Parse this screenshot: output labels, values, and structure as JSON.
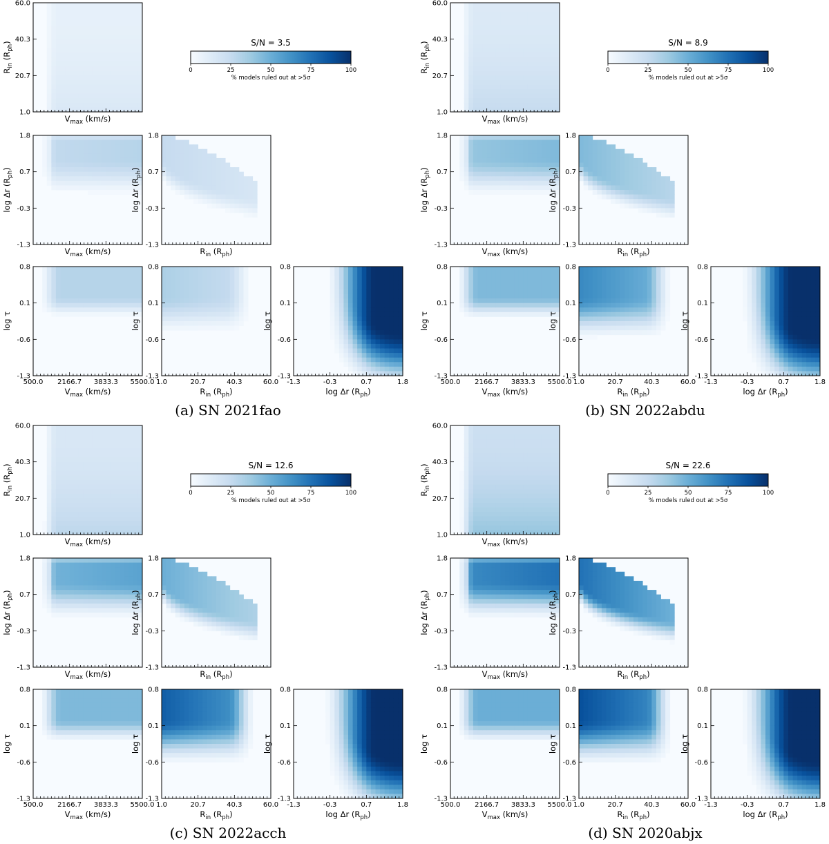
{
  "colors": {
    "cmap_low": "#f7fbff",
    "cmap_mid": "#6baed6",
    "cmap_high": "#08306b",
    "frame": "#000000"
  },
  "params": {
    "V": {
      "tick_labels": [
        "500.0",
        "2166.7",
        "3833.3",
        "5500.0"
      ],
      "range": [
        500,
        5500
      ],
      "unit": "km/s"
    },
    "R": {
      "tick_labels": [
        "1.0",
        "20.7",
        "40.3",
        "60.0"
      ],
      "range": [
        1,
        60
      ],
      "unit": "R_ph"
    },
    "D": {
      "tick_labels": [
        "-1.3",
        "-0.3",
        "0.7",
        "1.8"
      ],
      "range": [
        -1.3,
        1.8
      ],
      "unit": "R_ph"
    },
    "T": {
      "tick_labels": [
        "-1.3",
        "-0.6",
        "0.1",
        "0.8"
      ],
      "range": [
        -1.3,
        0.8
      ],
      "unit": ""
    }
  },
  "labels": {
    "V": {
      "main": "V",
      "sub": "max",
      "unit": " (km/s)"
    },
    "R": {
      "main": "R",
      "sub": "in",
      "unit": " (R",
      "sub2": "ph",
      "close": ")"
    },
    "D": {
      "main": "log Δr (R",
      "sub": "ph",
      "unit": ")"
    },
    "T": {
      "main": "log τ"
    }
  },
  "colorbar": {
    "ticks": [
      "0",
      "25",
      "50",
      "75",
      "100"
    ],
    "label": "% models ruled out at >5σ"
  },
  "chart_data": [
    {
      "type": "heatmap",
      "panel": "a",
      "caption": "(a) SN 2021fao",
      "sn_title": "S/N = 3.5",
      "max_percent": 100,
      "pairs": [
        {
          "x": "V",
          "y": "R",
          "peak_percent": 15,
          "shape": "weak, uniform"
        },
        {
          "x": "V",
          "y": "D",
          "peak_percent": 30,
          "shape": "high log Δr band"
        },
        {
          "x": "R",
          "y": "D",
          "peak_percent": 25,
          "shape": "top-left wedge"
        },
        {
          "x": "V",
          "y": "T",
          "peak_percent": 30,
          "shape": "high log τ band"
        },
        {
          "x": "R",
          "y": "T",
          "peak_percent": 30,
          "shape": "top-left"
        },
        {
          "x": "D",
          "y": "T",
          "peak_percent": 90,
          "shape": "top-right corner"
        }
      ]
    },
    {
      "type": "heatmap",
      "panel": "b",
      "caption": "(b) SN 2022abdu",
      "sn_title": "S/N = 8.9",
      "max_percent": 100,
      "pairs": [
        {
          "x": "V",
          "y": "R",
          "peak_percent": 25,
          "shape": "uniform, slightly stronger at low R_in"
        },
        {
          "x": "V",
          "y": "D",
          "peak_percent": 45,
          "shape": "high log Δr band"
        },
        {
          "x": "R",
          "y": "D",
          "peak_percent": 45,
          "shape": "wedge"
        },
        {
          "x": "V",
          "y": "T",
          "peak_percent": 45,
          "shape": "high log τ band"
        },
        {
          "x": "R",
          "y": "T",
          "peak_percent": 60,
          "shape": "top-left"
        },
        {
          "x": "D",
          "y": "T",
          "peak_percent": 100,
          "shape": "top-right corner"
        }
      ]
    },
    {
      "type": "heatmap",
      "panel": "c",
      "caption": "(c) SN 2022acch",
      "sn_title": "S/N = 12.6",
      "max_percent": 100,
      "pairs": [
        {
          "x": "V",
          "y": "R",
          "peak_percent": 28,
          "shape": "uniform, stronger at low R_in"
        },
        {
          "x": "V",
          "y": "D",
          "peak_percent": 55,
          "shape": "high log Δr band"
        },
        {
          "x": "R",
          "y": "D",
          "peak_percent": 50,
          "shape": "wedge"
        },
        {
          "x": "V",
          "y": "T",
          "peak_percent": 45,
          "shape": "high log τ band"
        },
        {
          "x": "R",
          "y": "T",
          "peak_percent": 75,
          "shape": "top-left"
        },
        {
          "x": "D",
          "y": "T",
          "peak_percent": 100,
          "shape": "top-right corner"
        }
      ]
    },
    {
      "type": "heatmap",
      "panel": "d",
      "caption": "(d) SN 2020abjx",
      "sn_title": "S/N = 22.6",
      "max_percent": 100,
      "pairs": [
        {
          "x": "V",
          "y": "R",
          "peak_percent": 40,
          "shape": "uniform, stronger at low R_in"
        },
        {
          "x": "V",
          "y": "D",
          "peak_percent": 75,
          "shape": "high log Δr band"
        },
        {
          "x": "R",
          "y": "D",
          "peak_percent": 75,
          "shape": "wedge"
        },
        {
          "x": "V",
          "y": "T",
          "peak_percent": 50,
          "shape": "high log τ band"
        },
        {
          "x": "R",
          "y": "T",
          "peak_percent": 80,
          "shape": "top-left"
        },
        {
          "x": "D",
          "y": "T",
          "peak_percent": 100,
          "shape": "top-right corner"
        }
      ]
    }
  ]
}
